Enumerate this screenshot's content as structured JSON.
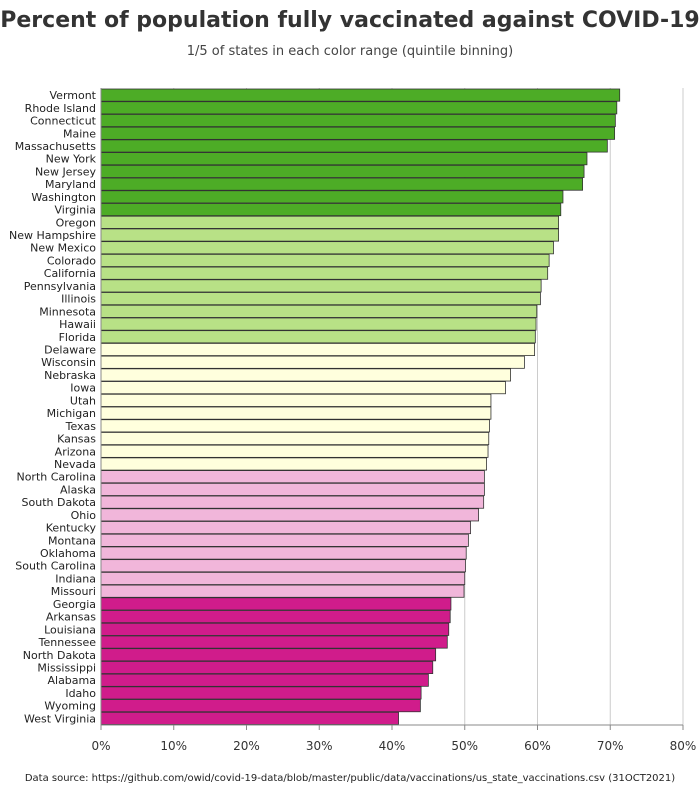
{
  "title": "Percent of population fully vaccinated against COVID-19",
  "subtitle": "1/5 of states in each color range (quintile binning)",
  "source": "Data source: https://github.com/owid/covid-19-data/blob/master/public/data/vaccinations/us_state_vaccinations.csv (31OCT2021)",
  "colors": {
    "q1": "#4DAC26",
    "q2": "#B8E186",
    "q3": "#FFFFDD",
    "q4": "#F1B6DA",
    "q5": "#D01C8B",
    "grid": "#cccccc",
    "bar_stroke": "#333333"
  },
  "chart_data": {
    "type": "bar",
    "orientation": "horizontal",
    "xlim": [
      0,
      80
    ],
    "xticks": [
      "0%",
      "10%",
      "20%",
      "30%",
      "40%",
      "50%",
      "60%",
      "70%",
      "80%"
    ],
    "grid": true,
    "categories": [
      "Vermont",
      "Rhode Island",
      "Connecticut",
      "Maine",
      "Massachusetts",
      "New York",
      "New Jersey",
      "Maryland",
      "Washington",
      "Virginia",
      "Oregon",
      "New Hampshire",
      "New Mexico",
      "Colorado",
      "California",
      "Pennsylvania",
      "Illinois",
      "Minnesota",
      "Hawaii",
      "Florida",
      "Delaware",
      "Wisconsin",
      "Nebraska",
      "Iowa",
      "Utah",
      "Michigan",
      "Texas",
      "Kansas",
      "Arizona",
      "Nevada",
      "North Carolina",
      "Alaska",
      "South Dakota",
      "Ohio",
      "Kentucky",
      "Montana",
      "Oklahoma",
      "South Carolina",
      "Indiana",
      "Missouri",
      "Georgia",
      "Arkansas",
      "Louisiana",
      "Tennessee",
      "North Dakota",
      "Mississippi",
      "Alabama",
      "Idaho",
      "Wyoming",
      "West Virginia"
    ],
    "values": [
      71.3,
      70.9,
      70.7,
      70.6,
      69.6,
      66.8,
      66.4,
      66.2,
      63.5,
      63.2,
      62.9,
      62.9,
      62.2,
      61.6,
      61.4,
      60.5,
      60.4,
      59.9,
      59.8,
      59.7,
      59.6,
      58.2,
      56.3,
      55.6,
      53.6,
      53.6,
      53.4,
      53.3,
      53.2,
      53.0,
      52.7,
      52.7,
      52.6,
      51.9,
      50.8,
      50.5,
      50.2,
      50.1,
      50.0,
      49.9,
      48.1,
      48.0,
      47.8,
      47.6,
      46.0,
      45.6,
      45.0,
      44.0,
      43.9,
      40.9
    ],
    "bins": [
      "q1",
      "q1",
      "q1",
      "q1",
      "q1",
      "q1",
      "q1",
      "q1",
      "q1",
      "q1",
      "q2",
      "q2",
      "q2",
      "q2",
      "q2",
      "q2",
      "q2",
      "q2",
      "q2",
      "q2",
      "q3",
      "q3",
      "q3",
      "q3",
      "q3",
      "q3",
      "q3",
      "q3",
      "q3",
      "q3",
      "q4",
      "q4",
      "q4",
      "q4",
      "q4",
      "q4",
      "q4",
      "q4",
      "q4",
      "q4",
      "q5",
      "q5",
      "q5",
      "q5",
      "q5",
      "q5",
      "q5",
      "q5",
      "q5",
      "q5"
    ]
  }
}
